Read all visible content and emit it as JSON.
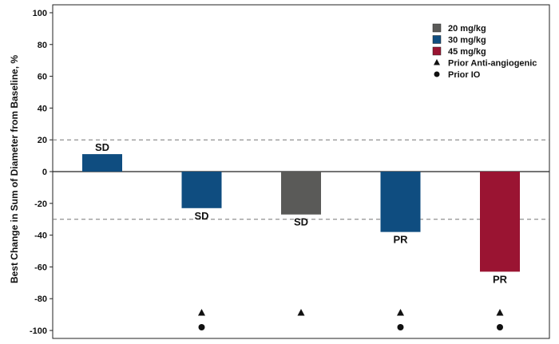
{
  "chart_data": {
    "type": "bar",
    "title": "",
    "ylabel": "Best Change in Sum of Diameter from Baseline, %",
    "xlabel": "",
    "ylim": [
      -105,
      105
    ],
    "yticks": [
      100,
      80,
      60,
      40,
      20,
      0,
      -20,
      -40,
      -60,
      -80,
      -100
    ],
    "grid": false,
    "reference_lines": [
      20,
      -30
    ],
    "legend_position": "top-right",
    "legend": [
      {
        "label": "20 mg/kg",
        "color": "#5a5a58",
        "marker": "square"
      },
      {
        "label": "30 mg/kg",
        "color": "#0f4d80",
        "marker": "square"
      },
      {
        "label": "45 mg/kg",
        "color": "#9a1432",
        "marker": "square"
      },
      {
        "label": "Prior Anti-angiogenic",
        "marker": "triangle"
      },
      {
        "label": "Prior IO",
        "marker": "circle"
      }
    ],
    "bars": [
      {
        "value": 11,
        "dose": "30 mg/kg",
        "color": "#0f4d80",
        "label": "SD",
        "prior_anti_angiogenic": false,
        "prior_io": false
      },
      {
        "value": -23,
        "dose": "30 mg/kg",
        "color": "#0f4d80",
        "label": "SD",
        "prior_anti_angiogenic": true,
        "prior_io": true
      },
      {
        "value": -27,
        "dose": "20 mg/kg",
        "color": "#5a5a58",
        "label": "SD",
        "prior_anti_angiogenic": true,
        "prior_io": false
      },
      {
        "value": -38,
        "dose": "30 mg/kg",
        "color": "#0f4d80",
        "label": "PR",
        "prior_anti_angiogenic": true,
        "prior_io": true
      },
      {
        "value": -63,
        "dose": "45 mg/kg",
        "color": "#9a1432",
        "label": "PR",
        "prior_anti_angiogenic": true,
        "prior_io": true
      }
    ]
  }
}
